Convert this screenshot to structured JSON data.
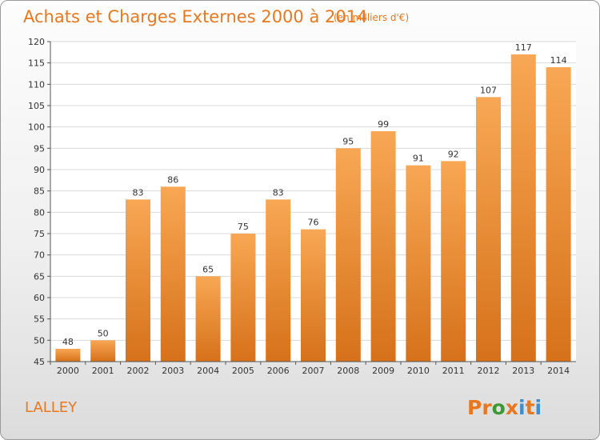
{
  "chart_data": {
    "type": "bar",
    "title": "Achats et Charges Externes 2000 à 2014",
    "subtitle": "(en milliers d'€)",
    "categories": [
      "2000",
      "2001",
      "2002",
      "2003",
      "2004",
      "2005",
      "2006",
      "2007",
      "2008",
      "2009",
      "2010",
      "2011",
      "2012",
      "2013",
      "2014"
    ],
    "values": [
      48,
      50,
      83,
      86,
      65,
      75,
      83,
      76,
      95,
      99,
      91,
      92,
      107,
      117,
      114
    ],
    "ylim": [
      45,
      120
    ],
    "yticks": [
      45,
      50,
      55,
      60,
      65,
      70,
      75,
      80,
      85,
      90,
      95,
      100,
      105,
      110,
      115,
      120
    ],
    "grid": true,
    "xlabel": "",
    "ylabel": "",
    "colors": {
      "bar_light": "#f8a754",
      "bar_dark": "#d6711a",
      "title": "#e8781f"
    }
  },
  "footer": {
    "commune": "LALLEY",
    "logo_text": "Proxiti",
    "logo_colors": [
      "#e8781f",
      "#e8781f",
      "#3c9a35",
      "#e8781f",
      "#3c8fd0",
      "#e8781f",
      "#3c8fd0"
    ]
  }
}
